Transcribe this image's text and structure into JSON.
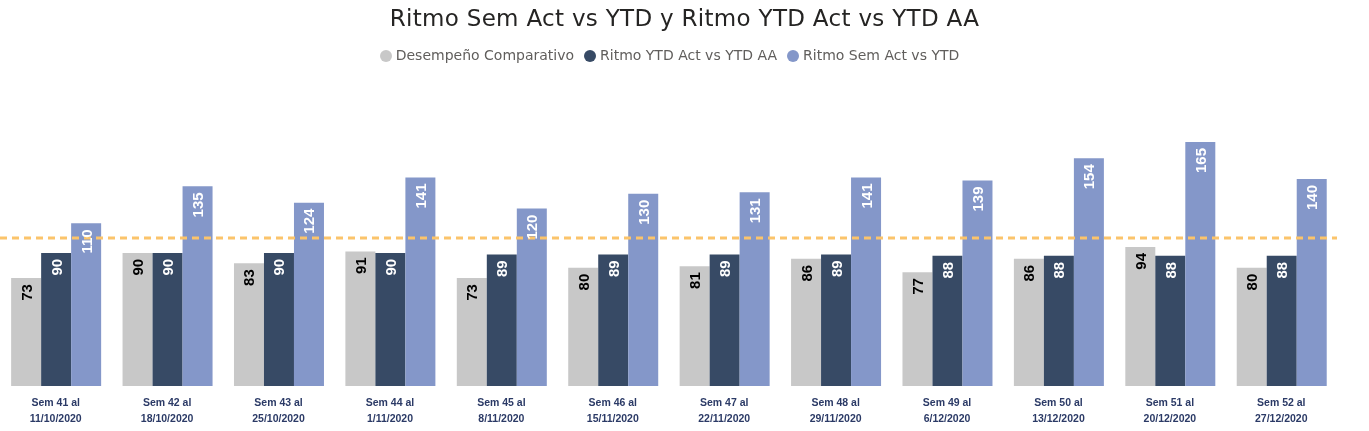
{
  "chart_data": {
    "type": "bar",
    "title": "Ritmo Sem Act vs YTD y Ritmo YTD Act vs YTD AA",
    "categories": [
      "Sem 41 al 11/10/2020",
      "Sem 42 al 18/10/2020",
      "Sem 43 al 25/10/2020",
      "Sem 44 al 1/11/2020",
      "Sem 45 al 8/11/2020",
      "Sem 46 al 15/11/2020",
      "Sem 47 al 22/11/2020",
      "Sem 48 al 29/11/2020",
      "Sem 49 al 6/12/2020",
      "Sem 50 al 13/12/2020",
      "Sem 51 al 20/12/2020",
      "Sem 52 al 27/12/2020"
    ],
    "series": [
      {
        "name": "Desempeño Comparativo",
        "color": "#c8c8c8",
        "values": [
          73,
          90,
          83,
          91,
          73,
          80,
          81,
          86,
          77,
          86,
          94,
          80
        ]
      },
      {
        "name": "Ritmo YTD Act vs YTD AA",
        "color": "#374a65",
        "values": [
          90,
          90,
          90,
          90,
          89,
          89,
          89,
          89,
          88,
          88,
          88,
          88
        ]
      },
      {
        "name": "Ritmo Sem Act vs YTD",
        "color": "#8497c9",
        "values": [
          110,
          135,
          124,
          141,
          120,
          130,
          131,
          141,
          139,
          154,
          165,
          140
        ]
      }
    ],
    "ref_lines": [
      {
        "axis": "y",
        "value": 100,
        "color": "#fbc46b",
        "line_style": "dashed"
      }
    ],
    "data_labels": true,
    "legend": "top",
    "tick_labels": "x"
  }
}
